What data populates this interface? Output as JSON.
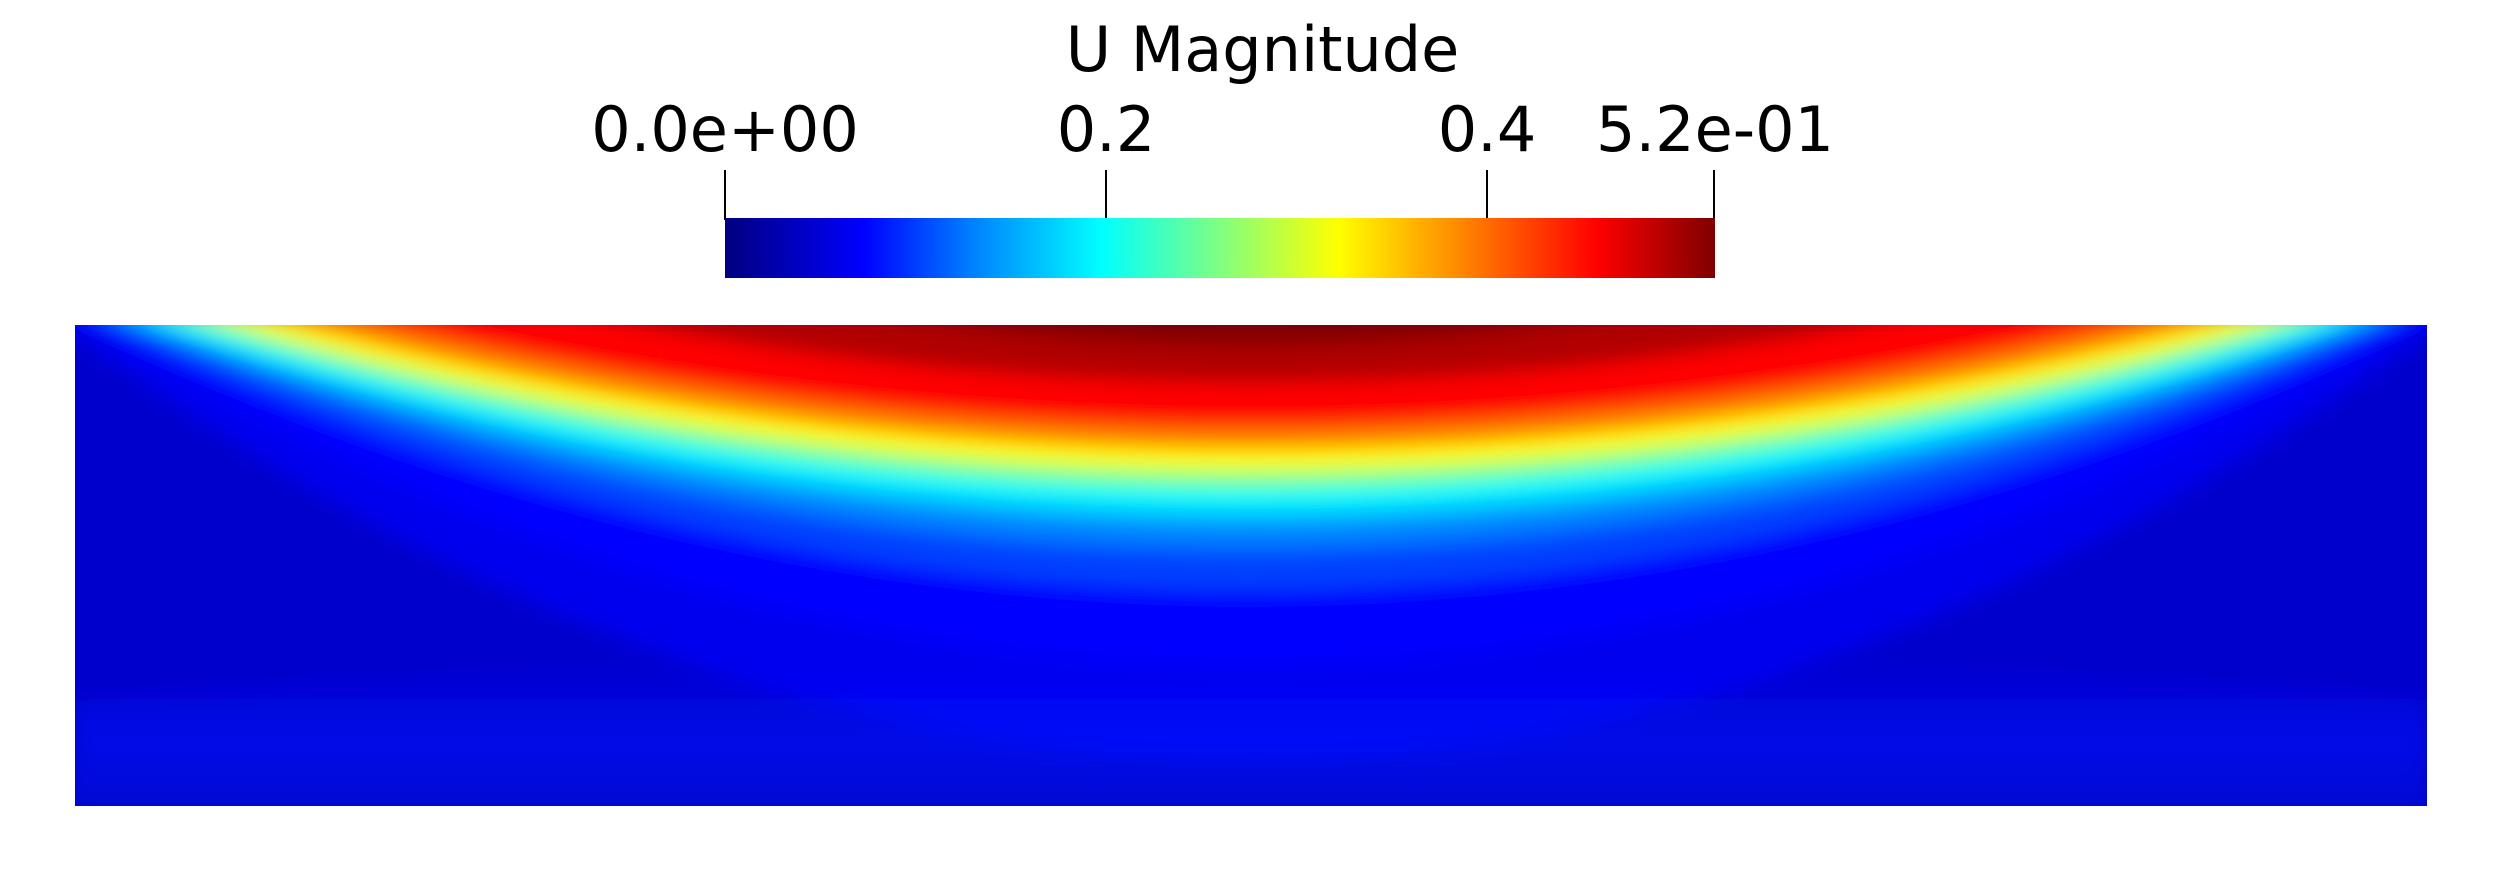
{
  "legend": {
    "title": "U Magnitude",
    "ticks": [
      {
        "label": "0.0e+00",
        "value": 0.0
      },
      {
        "label": "0.2",
        "value": 0.2
      },
      {
        "label": "0.4",
        "value": 0.4
      },
      {
        "label": "5.2e-01",
        "value": 0.52
      }
    ],
    "range": [
      0.0,
      0.52
    ],
    "colormap": [
      "#00007f",
      "#0000ff",
      "#0080ff",
      "#00ffff",
      "#80ff80",
      "#ffff00",
      "#ff8000",
      "#ff0000",
      "#7f0000"
    ]
  }
}
